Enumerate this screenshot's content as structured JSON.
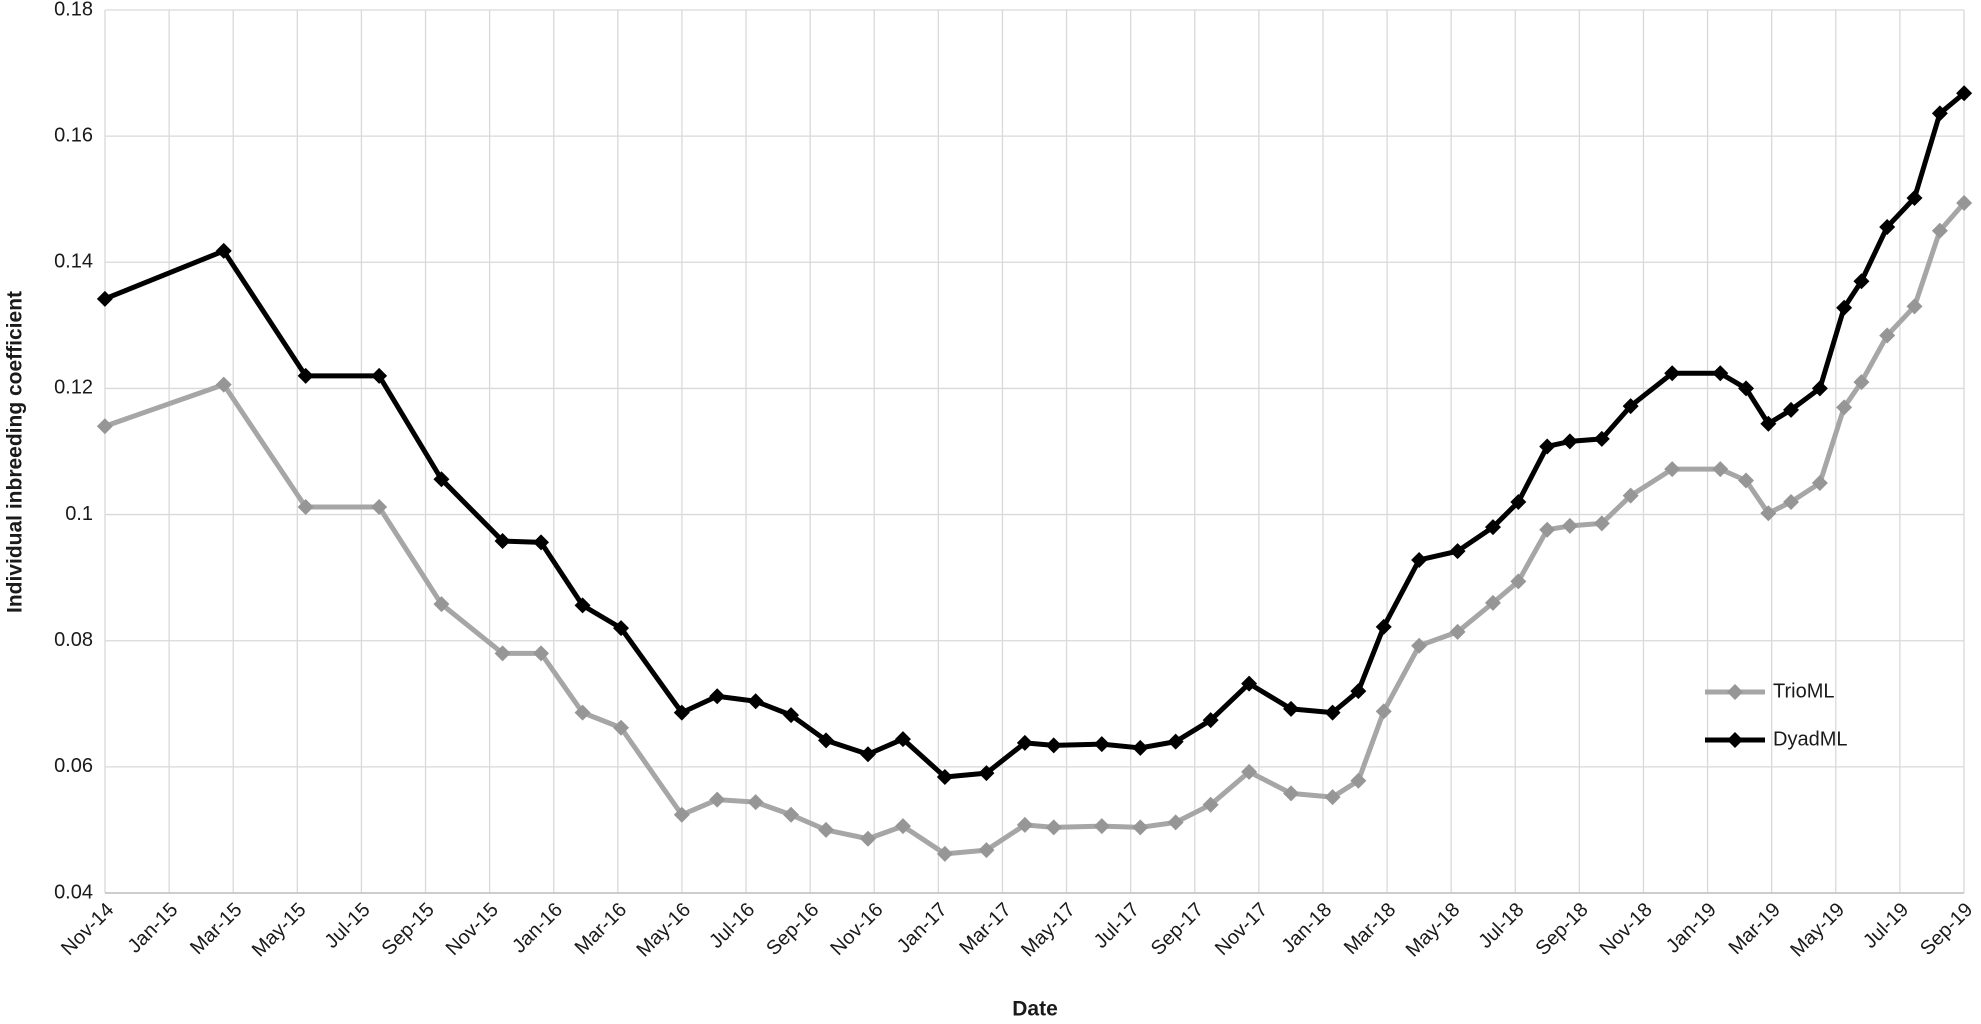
{
  "chart_data": {
    "type": "line",
    "x_label": "Date",
    "y_label": "Individual inbreeding coefficient",
    "x": [
      2014.833,
      2015.142,
      2015.355,
      2015.546,
      2015.708,
      2015.867,
      2015.967,
      2016.075,
      2016.175,
      2016.333,
      2016.425,
      2016.525,
      2016.617,
      2016.708,
      2016.817,
      2016.908,
      2017.017,
      2017.125,
      2017.225,
      2017.3,
      2017.425,
      2017.525,
      2017.617,
      2017.708,
      2017.808,
      2017.917,
      2018.025,
      2018.092,
      2018.158,
      2018.25,
      2018.35,
      2018.442,
      2018.508,
      2018.583,
      2018.642,
      2018.725,
      2018.8,
      2018.908,
      2019.033,
      2019.1,
      2019.158,
      2019.217,
      2019.292,
      2019.355,
      2019.4,
      2019.467,
      2019.538,
      2019.604,
      2019.667
    ],
    "series": [
      {
        "name": "TrioML",
        "color": "#a6a6a6",
        "marker_color": "#969696",
        "values": [
          0.114,
          0.1206,
          0.1012,
          0.1012,
          0.0858,
          0.078,
          0.078,
          0.0686,
          0.0662,
          0.0524,
          0.0548,
          0.0544,
          0.0524,
          0.05,
          0.0486,
          0.0506,
          0.0462,
          0.0468,
          0.0508,
          0.0504,
          0.0506,
          0.0504,
          0.0512,
          0.054,
          0.0592,
          0.0558,
          0.0552,
          0.0578,
          0.0688,
          0.0792,
          0.0814,
          0.086,
          0.0894,
          0.0976,
          0.0982,
          0.0986,
          0.103,
          0.1072,
          0.1072,
          0.1054,
          0.1002,
          0.102,
          0.105,
          0.117,
          0.121,
          0.1284,
          0.133,
          0.145,
          0.1494
        ]
      },
      {
        "name": "DyadML",
        "color": "#000000",
        "marker_color": "#000000",
        "values": [
          0.1342,
          0.1418,
          0.122,
          0.122,
          0.1056,
          0.0958,
          0.0956,
          0.0856,
          0.082,
          0.0686,
          0.0712,
          0.0704,
          0.0682,
          0.0642,
          0.062,
          0.0644,
          0.0584,
          0.059,
          0.0638,
          0.0634,
          0.0636,
          0.063,
          0.064,
          0.0674,
          0.0732,
          0.0692,
          0.0686,
          0.072,
          0.0822,
          0.0928,
          0.0942,
          0.098,
          0.102,
          0.1108,
          0.1116,
          0.112,
          0.1172,
          0.1224,
          0.1224,
          0.12,
          0.1144,
          0.1166,
          0.12,
          0.1328,
          0.137,
          0.1456,
          0.1502,
          0.1636,
          0.1668
        ]
      }
    ],
    "xlim": [
      2014.8333,
      2019.6667
    ],
    "xticks": [
      {
        "value": 2014.8333,
        "label": "Nov-14"
      },
      {
        "value": 2015,
        "label": "Jan-15"
      },
      {
        "value": 2015.1667,
        "label": "Mar-15"
      },
      {
        "value": 2015.3333,
        "label": "May-15"
      },
      {
        "value": 2015.5,
        "label": "Jul-15"
      },
      {
        "value": 2015.6667,
        "label": "Sep-15"
      },
      {
        "value": 2015.8333,
        "label": "Nov-15"
      },
      {
        "value": 2016,
        "label": "Jan-16"
      },
      {
        "value": 2016.1667,
        "label": "Mar-16"
      },
      {
        "value": 2016.3333,
        "label": "May-16"
      },
      {
        "value": 2016.5,
        "label": "Jul-16"
      },
      {
        "value": 2016.6667,
        "label": "Sep-16"
      },
      {
        "value": 2016.8333,
        "label": "Nov-16"
      },
      {
        "value": 2017,
        "label": "Jan-17"
      },
      {
        "value": 2017.1667,
        "label": "Mar-17"
      },
      {
        "value": 2017.3333,
        "label": "May-17"
      },
      {
        "value": 2017.5,
        "label": "Jul-17"
      },
      {
        "value": 2017.6667,
        "label": "Sep-17"
      },
      {
        "value": 2017.8333,
        "label": "Nov-17"
      },
      {
        "value": 2018,
        "label": "Jan-18"
      },
      {
        "value": 2018.1667,
        "label": "Mar-18"
      },
      {
        "value": 2018.3333,
        "label": "May-18"
      },
      {
        "value": 2018.5,
        "label": "Jul-18"
      },
      {
        "value": 2018.6667,
        "label": "Sep-18"
      },
      {
        "value": 2018.8333,
        "label": "Nov-18"
      },
      {
        "value": 2019,
        "label": "Jan-19"
      },
      {
        "value": 2019.1667,
        "label": "Mar-19"
      },
      {
        "value": 2019.3333,
        "label": "May-19"
      },
      {
        "value": 2019.5,
        "label": "Jul-19"
      },
      {
        "value": 2019.6667,
        "label": "Sep-19"
      }
    ],
    "ylim": [
      0.04,
      0.18
    ],
    "yticks": [
      0.04,
      0.06,
      0.08,
      0.1,
      0.12,
      0.14,
      0.16,
      0.18
    ],
    "grid": true,
    "legend": "right"
  }
}
